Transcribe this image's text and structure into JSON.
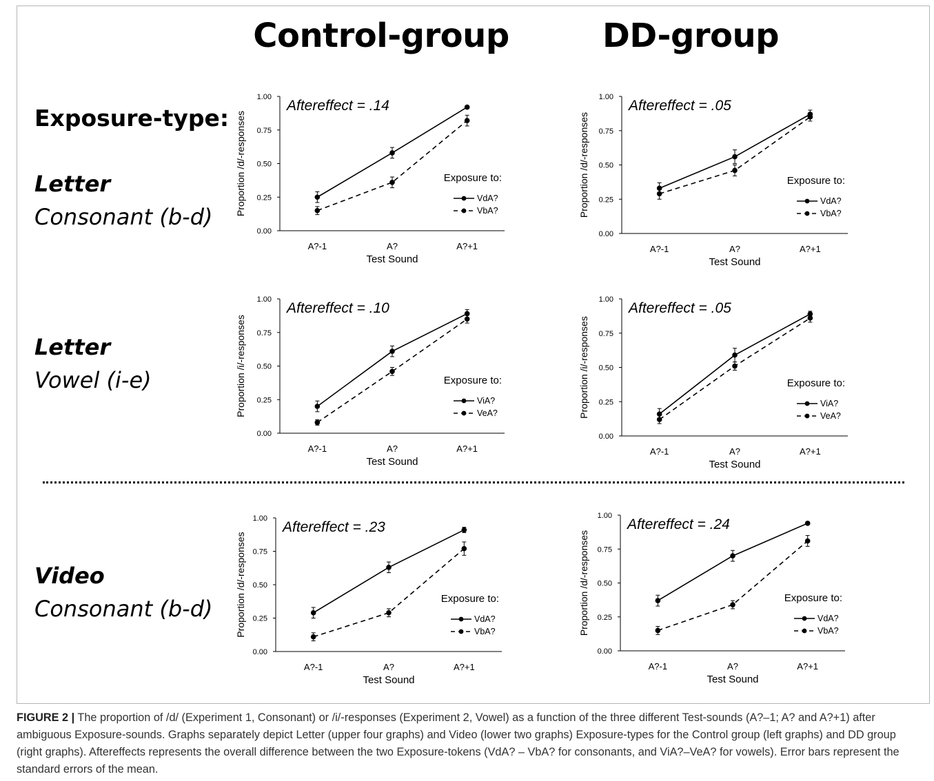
{
  "figure": {
    "col_titles": [
      "Control-group",
      "DD-group"
    ],
    "exposure_heading": "Exposure-type:",
    "rows": [
      {
        "line1": "Letter",
        "line2": "Consonant (b-d)"
      },
      {
        "line1": "Letter",
        "line2": "Vowel (i-e)"
      },
      {
        "line1": "Video",
        "line2": "Consonant (b-d)"
      }
    ],
    "caption_label": "FIGURE 2 |",
    "caption_text": " The proportion of /d/ (Experiment 1, Consonant) or /i/-responses (Experiment 2, Vowel) as a function of the three different Test-sounds (A?–1; A? and A?+1) after ambiguous Exposure-sounds. Graphs separately depict Letter (upper four graphs) and Video (lower two graphs) Exposure-types for the Control group (left graphs) and DD group (right graphs). Aftereffects represents the overall difference between the two Exposure-tokens (VdA? – VbA? for consonants, and ViA?–VeA? for vowels). Error bars represent the standard errors of the mean."
  },
  "colors": {
    "line": "#000000",
    "axis": "#000000",
    "text": "#000000",
    "caption": "#333333"
  },
  "chart_data": [
    {
      "id": "control-letter-consonant",
      "type": "line",
      "categories": [
        "A?-1",
        "A?",
        "A?+1"
      ],
      "xlabel": "Test Sound",
      "ylabel": "Proportion /d/-responses",
      "ylim": [
        0,
        1
      ],
      "yticks": [
        "0.00",
        "0.25",
        "0.50",
        "0.75",
        "1.00"
      ],
      "annotation": "Aftereffect = .14",
      "legend_title": "Exposure to:",
      "series": [
        {
          "name": "VdA?",
          "style": "solid",
          "values": [
            0.25,
            0.58,
            0.92
          ],
          "errors": [
            0.04,
            0.04,
            0.01
          ]
        },
        {
          "name": "VbA?",
          "style": "dashed",
          "values": [
            0.15,
            0.36,
            0.82
          ],
          "errors": [
            0.03,
            0.04,
            0.04
          ]
        }
      ]
    },
    {
      "id": "dd-letter-consonant",
      "type": "line",
      "categories": [
        "A?-1",
        "A?",
        "A?+1"
      ],
      "xlabel": "Test Sound",
      "ylabel": "Proportion /d/-responses",
      "ylim": [
        0,
        1
      ],
      "yticks": [
        "0.00",
        "0.25",
        "0.50",
        "0.75",
        "1.00"
      ],
      "annotation": "Aftereffect = .05",
      "legend_title": "Exposure to:",
      "series": [
        {
          "name": "VdA?",
          "style": "solid",
          "values": [
            0.33,
            0.56,
            0.87
          ],
          "errors": [
            0.04,
            0.05,
            0.03
          ]
        },
        {
          "name": "VbA?",
          "style": "dashed",
          "values": [
            0.29,
            0.46,
            0.85
          ],
          "errors": [
            0.04,
            0.04,
            0.03
          ]
        }
      ]
    },
    {
      "id": "control-letter-vowel",
      "type": "line",
      "categories": [
        "A?-1",
        "A?",
        "A?+1"
      ],
      "xlabel": "Test Sound",
      "ylabel": "Proportion /i/-responses",
      "ylim": [
        0,
        1
      ],
      "yticks": [
        "0.00",
        "0.25",
        "0.50",
        "0.75",
        "1.00"
      ],
      "annotation": "Aftereffect = .10",
      "legend_title": "Exposure to:",
      "series": [
        {
          "name": "ViA?",
          "style": "solid",
          "values": [
            0.2,
            0.61,
            0.89
          ],
          "errors": [
            0.04,
            0.04,
            0.03
          ]
        },
        {
          "name": "VeA?",
          "style": "dashed",
          "values": [
            0.08,
            0.46,
            0.85
          ],
          "errors": [
            0.02,
            0.03,
            0.03
          ]
        }
      ]
    },
    {
      "id": "dd-letter-vowel",
      "type": "line",
      "categories": [
        "A?-1",
        "A?",
        "A?+1"
      ],
      "xlabel": "Test Sound",
      "ylabel": "Proportion /i/-responses",
      "ylim": [
        0,
        1
      ],
      "yticks": [
        "0.00",
        "0.25",
        "0.50",
        "0.75",
        "1.00"
      ],
      "annotation": "Aftereffect = .05",
      "legend_title": "Exposure to:",
      "series": [
        {
          "name": "ViA?",
          "style": "solid",
          "values": [
            0.16,
            0.59,
            0.89
          ],
          "errors": [
            0.04,
            0.05,
            0.02
          ]
        },
        {
          "name": "VeA?",
          "style": "dashed",
          "values": [
            0.12,
            0.51,
            0.86
          ],
          "errors": [
            0.03,
            0.03,
            0.03
          ]
        }
      ]
    },
    {
      "id": "control-video-consonant",
      "type": "line",
      "categories": [
        "A?-1",
        "A?",
        "A?+1"
      ],
      "xlabel": "Test Sound",
      "ylabel": "Proportion /d/-responses",
      "ylim": [
        0,
        1
      ],
      "yticks": [
        "0.00",
        "0.25",
        "0.50",
        "0.75",
        "1.00"
      ],
      "annotation": "Aftereffect = .23",
      "legend_title": "Exposure to:",
      "series": [
        {
          "name": "VdA?",
          "style": "solid",
          "values": [
            0.29,
            0.63,
            0.91
          ],
          "errors": [
            0.04,
            0.04,
            0.02
          ]
        },
        {
          "name": "VbA?",
          "style": "dashed",
          "values": [
            0.11,
            0.29,
            0.77
          ],
          "errors": [
            0.03,
            0.03,
            0.05
          ]
        }
      ]
    },
    {
      "id": "dd-video-consonant",
      "type": "line",
      "categories": [
        "A?-1",
        "A?",
        "A?+1"
      ],
      "xlabel": "Test Sound",
      "ylabel": "Proportion /d/-responses",
      "ylim": [
        0,
        1
      ],
      "yticks": [
        "0.00",
        "0.25",
        "0.50",
        "0.75",
        "1.00"
      ],
      "annotation": "Aftereffect = .24",
      "legend_title": "Exposure to:",
      "series": [
        {
          "name": "VdA?",
          "style": "solid",
          "values": [
            0.37,
            0.7,
            0.94
          ],
          "errors": [
            0.04,
            0.04,
            0.01
          ]
        },
        {
          "name": "VbA?",
          "style": "dashed",
          "values": [
            0.15,
            0.34,
            0.81
          ],
          "errors": [
            0.03,
            0.03,
            0.04
          ]
        }
      ]
    }
  ]
}
